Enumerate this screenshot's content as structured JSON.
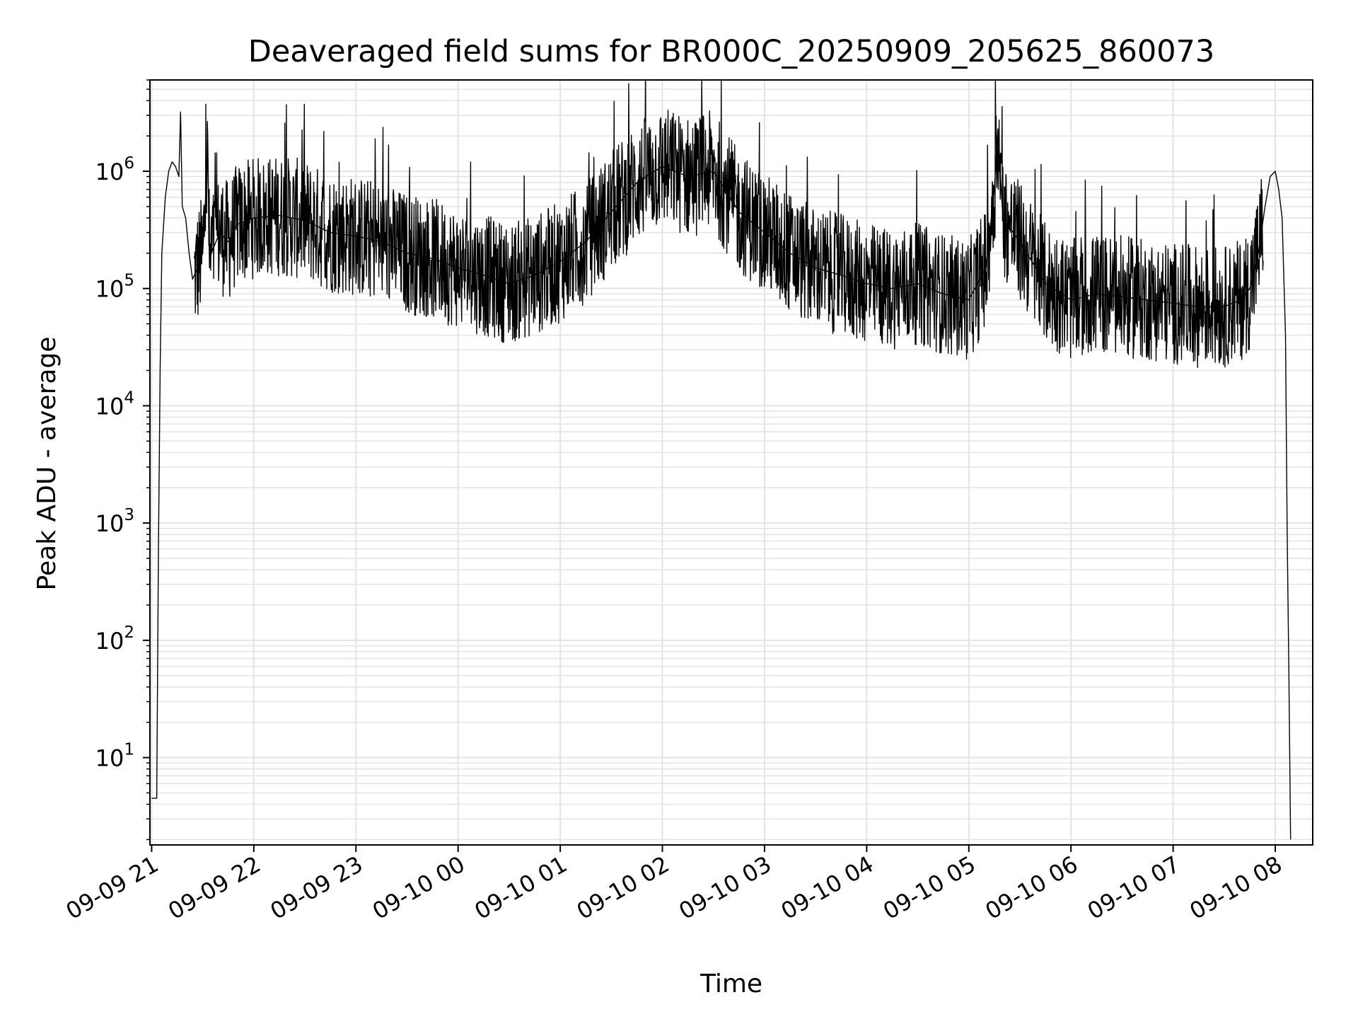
{
  "chart_data": {
    "type": "line",
    "title": "Deaveraged field sums for BR000C_20250909_205625_860073",
    "xlabel": "Time",
    "ylabel": "Peak ADU - average",
    "yscale": "log",
    "grid": true,
    "line_color": "#000000",
    "x_tick_labels": [
      "09-09 21",
      "09-09 22",
      "09-09 23",
      "09-10 00",
      "09-10 01",
      "09-10 02",
      "09-10 03",
      "09-10 04",
      "09-10 05",
      "09-10 06",
      "09-10 07",
      "09-10 08"
    ],
    "y_tick_labels": [
      {
        "base": "10",
        "exp": "1"
      },
      {
        "base": "10",
        "exp": "2"
      },
      {
        "base": "10",
        "exp": "3"
      },
      {
        "base": "10",
        "exp": "4"
      },
      {
        "base": "10",
        "exp": "5"
      },
      {
        "base": "10",
        "exp": "6"
      }
    ],
    "xlim": [
      "2025-09-09 20:59",
      "2025-09-10 08:22"
    ],
    "ylim": [
      1.8,
      6000000
    ],
    "series": [
      {
        "x": [
          "2025-09-09 21:00",
          "2025-09-09 21:01",
          "2025-09-09 21:02",
          "2025-09-09 21:03",
          "2025-09-09 21:04",
          "2025-09-09 21:05",
          "2025-09-09 21:06",
          "2025-09-09 21:08",
          "2025-09-09 21:10",
          "2025-09-09 21:12",
          "2025-09-09 21:14",
          "2025-09-09 21:16",
          "2025-09-09 21:17",
          "2025-09-09 21:18",
          "2025-09-09 21:20",
          "2025-09-09 21:22",
          "2025-09-09 21:24",
          "2025-09-09 21:27",
          "2025-09-09 21:30",
          "2025-09-09 21:33",
          "2025-09-09 21:34",
          "2025-09-09 21:35",
          "2025-09-09 21:40",
          "2025-09-09 21:45",
          "2025-09-09 21:50",
          "2025-09-09 22:00",
          "2025-09-09 22:15",
          "2025-09-09 22:30",
          "2025-09-09 22:45",
          "2025-09-09 23:00",
          "2025-09-09 23:15",
          "2025-09-09 23:30",
          "2025-09-09 23:45",
          "2025-09-10 00:00",
          "2025-09-10 00:15",
          "2025-09-10 00:30",
          "2025-09-10 00:45",
          "2025-09-10 01:00",
          "2025-09-10 01:15",
          "2025-09-10 01:30",
          "2025-09-10 01:45",
          "2025-09-10 02:00",
          "2025-09-10 02:15",
          "2025-09-10 02:30",
          "2025-09-10 02:45",
          "2025-09-10 03:00",
          "2025-09-10 03:15",
          "2025-09-10 03:30",
          "2025-09-10 03:45",
          "2025-09-10 04:00",
          "2025-09-10 04:15",
          "2025-09-10 04:30",
          "2025-09-10 04:45",
          "2025-09-10 05:00",
          "2025-09-10 05:10",
          "2025-09-10 05:15",
          "2025-09-10 05:17",
          "2025-09-10 05:20",
          "2025-09-10 05:30",
          "2025-09-10 05:45",
          "2025-09-10 06:00",
          "2025-09-10 06:15",
          "2025-09-10 06:30",
          "2025-09-10 06:45",
          "2025-09-10 07:00",
          "2025-09-10 07:15",
          "2025-09-10 07:30",
          "2025-09-10 07:40",
          "2025-09-10 07:45",
          "2025-09-10 07:50",
          "2025-09-10 07:54",
          "2025-09-10 07:57",
          "2025-09-10 08:00",
          "2025-09-10 08:02",
          "2025-09-10 08:04",
          "2025-09-10 08:06",
          "2025-09-10 08:07",
          "2025-09-10 08:08",
          "2025-09-10 08:09"
        ],
        "y": [
          4.5,
          4.5,
          4.5,
          4.5,
          600,
          20000,
          200000,
          600000,
          1000000,
          1200000,
          1100000,
          900000,
          3200000,
          500000,
          400000,
          200000,
          120000,
          150000,
          200000,
          1400000,
          150000,
          200000,
          300000,
          250000,
          350000,
          400000,
          420000,
          380000,
          300000,
          280000,
          250000,
          200000,
          180000,
          150000,
          130000,
          110000,
          130000,
          170000,
          250000,
          450000,
          800000,
          1100000,
          900000,
          1000000,
          450000,
          300000,
          200000,
          150000,
          130000,
          110000,
          100000,
          110000,
          90000,
          80000,
          150000,
          700000,
          2300000,
          400000,
          250000,
          110000,
          80000,
          90000,
          85000,
          80000,
          75000,
          70000,
          70000,
          80000,
          100000,
          200000,
          500000,
          900000,
          1000000,
          700000,
          400000,
          40000,
          800,
          50,
          2
        ]
      }
    ]
  }
}
